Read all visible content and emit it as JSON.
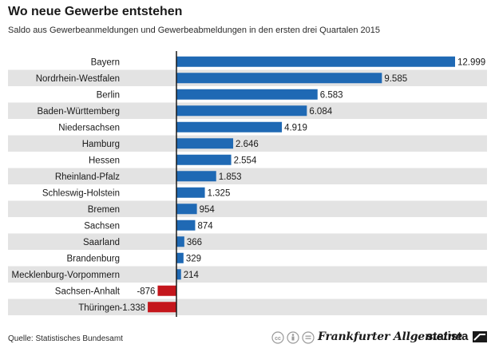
{
  "header": {
    "title": "Wo neue Gewerbe entstehen",
    "subtitle": "Saldo aus Gewerbeanmeldungen und Gewerbeabmeldungen in den ersten drei Quartalen 2015"
  },
  "footer": {
    "source": "Quelle: Statistisches Bundesamt",
    "publisher_logo": "Frankfurter Allgemeine",
    "brand_logo": "statista",
    "license_icons": [
      "cc-icon",
      "by-icon",
      "nd-icon"
    ]
  },
  "colors": {
    "positive": "#1f69b4",
    "negative": "#c4161c",
    "row_shade": "#e3e3e3",
    "axis": "#1a1a1a"
  },
  "chart_data": {
    "type": "bar",
    "orientation": "horizontal",
    "categories": [
      "Bayern",
      "Nordrhein-Westfalen",
      "Berlin",
      "Baden-Württemberg",
      "Niedersachsen",
      "Hamburg",
      "Hessen",
      "Rheinland-Pfalz",
      "Schleswig-Holstein",
      "Bremen",
      "Sachsen",
      "Saarland",
      "Brandenburg",
      "Mecklenburg-Vorpommern",
      "Sachsen-Anhalt",
      "Thüringen"
    ],
    "values": [
      12999,
      9585,
      6583,
      6084,
      4919,
      2646,
      2554,
      1853,
      1325,
      954,
      874,
      366,
      329,
      214,
      -876,
      -1338
    ],
    "value_labels": [
      "12.999",
      "9.585",
      "6.583",
      "6.084",
      "4.919",
      "2.646",
      "2.554",
      "1.853",
      "1.325",
      "954",
      "874",
      "366",
      "329",
      "214",
      "-876",
      "-1.338"
    ],
    "xlim": [
      -1338,
      12999
    ],
    "grid": false,
    "alternating_row_shading": true
  }
}
